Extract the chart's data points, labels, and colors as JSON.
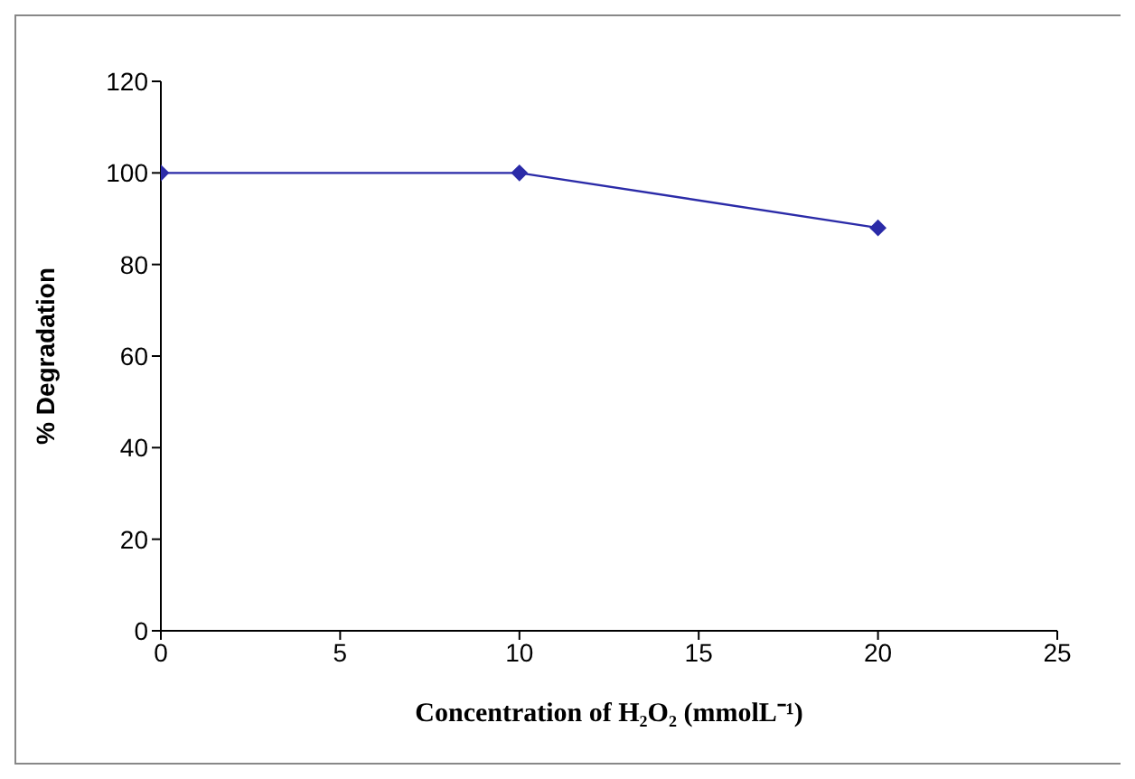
{
  "chart_data": {
    "type": "line",
    "xlabel": "Concentration of H₂O₂ (mmolL⁻¹)",
    "ylabel": "% Degradation",
    "x": [
      0,
      10,
      20
    ],
    "series": [
      {
        "color": "#2b2ba8",
        "values": [
          100,
          100,
          88
        ]
      }
    ],
    "xlim": [
      0,
      25
    ],
    "xticks": [
      0,
      5,
      10,
      15,
      20,
      25
    ],
    "ylim": [
      0,
      120
    ],
    "yticks": [
      0,
      20,
      40,
      60,
      80,
      100,
      120
    ],
    "grid": false,
    "legend": false,
    "marker": "diamond",
    "line_style": "solid"
  }
}
